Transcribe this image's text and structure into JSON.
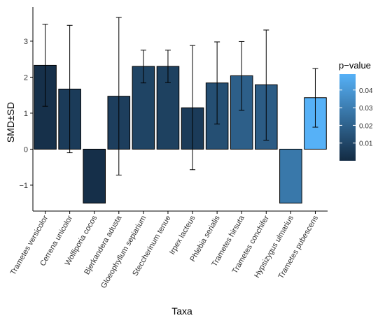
{
  "chart_data": {
    "type": "bar",
    "xlabel": "Taxa",
    "ylabel": "SMD±SD",
    "categories": [
      "Trametes versicolor",
      "Cerrena unicolor",
      "Wolfiporia cocos",
      "Bjerkandera adusta",
      "Gloeophyllum sepiarium",
      "Steccherinum tenue",
      "Irpex lacteus",
      "Phlebia serialis",
      "Trametes hirsuta",
      "Trametes conchifer",
      "Hypsizygus ulmarius",
      "Trametes pubescens"
    ],
    "values": [
      2.33,
      1.67,
      -1.5,
      1.47,
      2.3,
      2.3,
      1.15,
      1.84,
      2.04,
      1.79,
      -1.5,
      1.43
    ],
    "error_low": [
      1.19,
      -0.1,
      null,
      -0.72,
      1.84,
      1.85,
      -0.57,
      0.7,
      1.08,
      0.25,
      null,
      0.61
    ],
    "error_high": [
      3.47,
      3.44,
      null,
      3.66,
      2.75,
      2.75,
      2.88,
      2.98,
      2.99,
      3.31,
      null,
      2.24
    ],
    "p_values": [
      0.002,
      0.006,
      0.0015,
      0.007,
      0.009,
      0.008,
      0.006,
      0.013,
      0.019,
      0.018,
      0.028,
      0.049
    ],
    "ylim": [
      -1.72,
      3.95
    ],
    "yticks": [
      -1,
      0,
      1,
      2,
      3
    ],
    "ytick_labels": [
      "−1",
      "0",
      "1",
      "2",
      "3"
    ],
    "grid": false,
    "legend": {
      "title": "p−value",
      "placement": "right",
      "ticks": [
        0.01,
        0.02,
        0.03,
        0.04
      ],
      "tick_labels": [
        "0.01",
        "0.02",
        "0.03",
        "0.04"
      ],
      "range": [
        0.0,
        0.049
      ],
      "color_low": "#132b43",
      "color_high": "#56b1f7"
    }
  }
}
